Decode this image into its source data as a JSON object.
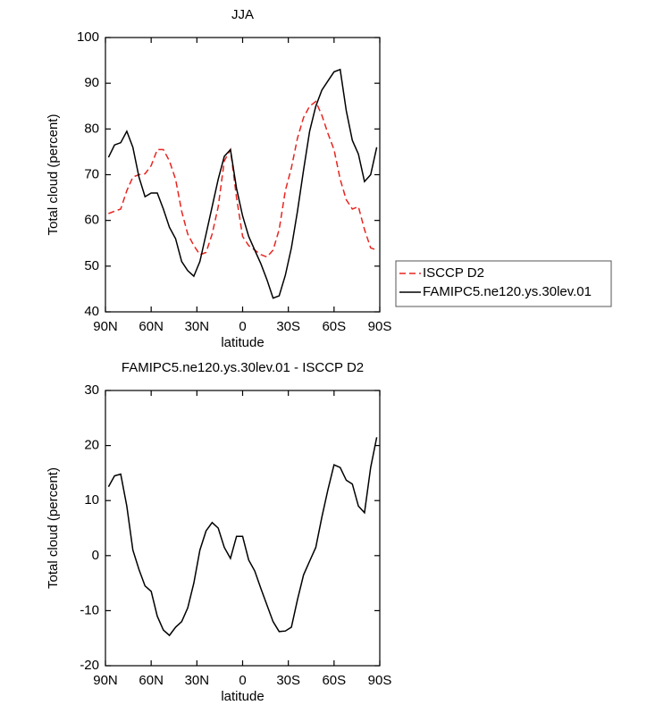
{
  "chart_data": [
    {
      "type": "line",
      "title": "JJA",
      "x_label": "latitude",
      "y_label": "Total cloud (percent)",
      "x": [
        88,
        84,
        80,
        76,
        72,
        68,
        64,
        60,
        56,
        52,
        48,
        44,
        40,
        36,
        32,
        28,
        24,
        20,
        16,
        12,
        8,
        4,
        0,
        -4,
        -8,
        -12,
        -16,
        -20,
        -24,
        -28,
        -32,
        -36,
        -40,
        -44,
        -48,
        -52,
        -56,
        -60,
        -64,
        -68,
        -72,
        -76,
        -80,
        -84,
        -88
      ],
      "series": [
        {
          "name": "ISCCP D2",
          "color": "#e8251f",
          "line_style": "dashed",
          "values": [
            61.5,
            62,
            62.5,
            66.5,
            69.5,
            70,
            70.2,
            72,
            75.5,
            75.5,
            73,
            69,
            62,
            57,
            54.5,
            52.5,
            53,
            57,
            63,
            73,
            75.5,
            65,
            56.5,
            54.5,
            53.5,
            52.5,
            52,
            53.5,
            58,
            66.5,
            71.5,
            78,
            82.5,
            85,
            86,
            83,
            79,
            75.5,
            69,
            64.5,
            62.5,
            63,
            58,
            54,
            53.5
          ]
        },
        {
          "name": "FAMIPC5.ne120.ys.30lev.01",
          "color": "#000000",
          "line_style": "solid",
          "values": [
            73.8,
            76.5,
            77,
            79.5,
            76,
            69.5,
            65.2,
            66,
            66,
            62.5,
            58.5,
            56,
            51,
            49,
            47.8,
            51,
            57,
            63,
            69,
            74,
            75.5,
            67,
            61,
            56.5,
            53.5,
            50.5,
            47,
            43,
            43.5,
            48,
            54,
            62,
            71,
            79.5,
            85,
            88.5,
            90.5,
            92.5,
            93,
            84,
            77.5,
            74.5,
            68.5,
            70,
            76
          ]
        }
      ],
      "xlim": [
        90,
        -90
      ],
      "xticks": [
        {
          "value": 90,
          "label": "90N"
        },
        {
          "value": 60,
          "label": "60N"
        },
        {
          "value": 30,
          "label": "30N"
        },
        0,
        {
          "value": -30,
          "label": "30S"
        },
        {
          "value": -60,
          "label": "60S"
        },
        {
          "value": -90,
          "label": "90S"
        }
      ],
      "ylim": [
        40,
        100
      ],
      "yticks": [
        40,
        50,
        60,
        70,
        80,
        90,
        100
      ],
      "legend": "outside-right"
    },
    {
      "type": "line",
      "title": "FAMIPC5.ne120.ys.30lev.01 - ISCCP D2",
      "x_label": "latitude",
      "y_label": "Total cloud (percent)",
      "x": [
        88,
        84,
        80,
        76,
        72,
        68,
        64,
        60,
        56,
        52,
        48,
        44,
        40,
        36,
        32,
        28,
        24,
        20,
        16,
        12,
        8,
        4,
        0,
        -4,
        -8,
        -12,
        -16,
        -20,
        -24,
        -28,
        -32,
        -36,
        -40,
        -44,
        -48,
        -52,
        -56,
        -60,
        -64,
        -68,
        -72,
        -76,
        -80,
        -84,
        -88
      ],
      "series": [
        {
          "color": "#000000",
          "line_style": "solid",
          "values": [
            12.5,
            14.5,
            14.8,
            9,
            1,
            -2.5,
            -5.5,
            -6.5,
            -11,
            -13.5,
            -14.5,
            -13,
            -12,
            -9.5,
            -5,
            1,
            4.5,
            6,
            5,
            1.5,
            -0.5,
            3.5,
            3.5,
            -0.8,
            -2.8,
            -6,
            -9,
            -12,
            -13.8,
            -13.7,
            -13,
            -8,
            -3.5,
            -1,
            1.5,
            7,
            12,
            16.5,
            16,
            13.7,
            13,
            9,
            7.8,
            16,
            21.5
          ]
        }
      ],
      "xlim": [
        90,
        -90
      ],
      "xticks": [
        {
          "value": 90,
          "label": "90N"
        },
        {
          "value": 60,
          "label": "60N"
        },
        {
          "value": 30,
          "label": "30N"
        },
        0,
        {
          "value": -30,
          "label": "30S"
        },
        {
          "value": -60,
          "label": "60S"
        },
        {
          "value": -90,
          "label": "90S"
        }
      ],
      "ylim": [
        -20,
        30
      ],
      "yticks": [
        -20,
        -10,
        0,
        10,
        20,
        30
      ]
    }
  ]
}
